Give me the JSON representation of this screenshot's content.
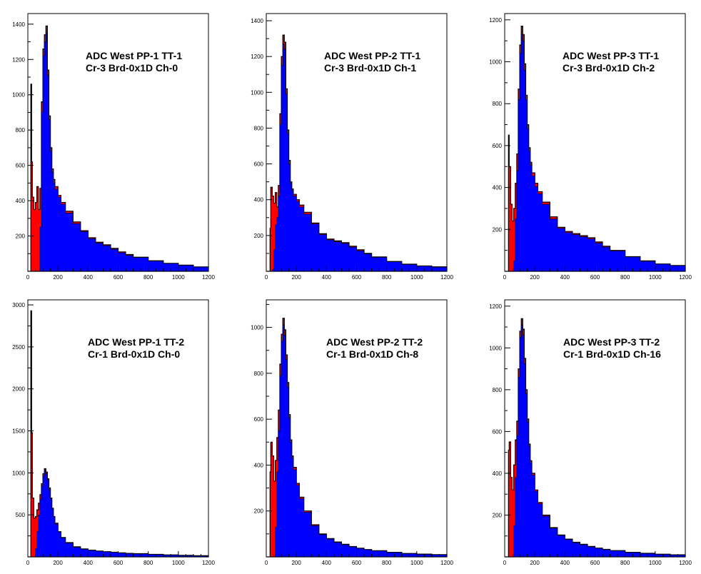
{
  "colors": {
    "background": "#ffffff",
    "total_fill": "#ff0000",
    "gated_fill": "#0000ff",
    "outline": "#000000"
  },
  "chart_data": [
    {
      "type": "area",
      "title_lines": [
        "ADC West PP-1 TT-1",
        "Cr-3 Brd-0x1D Ch-0"
      ],
      "xlim": [
        0,
        1200
      ],
      "ylim": [
        0,
        1460
      ],
      "xticks": [
        0,
        200,
        400,
        600,
        800,
        1000,
        1200
      ],
      "yticks": [
        200,
        400,
        600,
        800,
        1000,
        1200,
        1400
      ],
      "x": [
        0,
        15,
        20,
        25,
        30,
        40,
        50,
        60,
        70,
        80,
        90,
        100,
        110,
        120,
        130,
        140,
        150,
        160,
        170,
        180,
        200,
        220,
        250,
        300,
        350,
        400,
        450,
        500,
        550,
        600,
        650,
        700,
        800,
        900,
        1000,
        1100,
        1200
      ],
      "series": [
        {
          "values": [
            0,
            0,
            1060,
            620,
            420,
            350,
            390,
            480,
            350,
            470,
            960,
            1260,
            1340,
            1390,
            1140,
            880,
            700,
            580,
            520,
            480,
            430,
            390,
            340,
            280,
            230,
            190,
            165,
            150,
            130,
            110,
            95,
            80,
            60,
            45,
            35,
            25,
            20
          ]
        },
        {
          "values": [
            0,
            0,
            0,
            0,
            0,
            0,
            0,
            0,
            0,
            250,
            900,
            1220,
            1300,
            1350,
            1110,
            860,
            680,
            560,
            500,
            465,
            420,
            380,
            330,
            270,
            225,
            185,
            160,
            145,
            125,
            105,
            90,
            78,
            58,
            44,
            34,
            24,
            18
          ]
        }
      ]
    },
    {
      "type": "area",
      "title_lines": [
        "ADC West PP-2 TT-1",
        "Cr-3 Brd-0x1D Ch-1"
      ],
      "xlim": [
        0,
        1200
      ],
      "ylim": [
        0,
        1440
      ],
      "xticks": [
        0,
        200,
        400,
        600,
        800,
        1000,
        1200
      ],
      "yticks": [
        200,
        400,
        600,
        800,
        1000,
        1200,
        1400
      ],
      "x": [
        0,
        15,
        20,
        25,
        30,
        40,
        50,
        60,
        70,
        80,
        90,
        100,
        110,
        120,
        130,
        140,
        150,
        160,
        170,
        180,
        200,
        220,
        250,
        300,
        350,
        400,
        450,
        500,
        550,
        600,
        650,
        700,
        800,
        900,
        1000,
        1100,
        1200
      ],
      "series": [
        {
          "values": [
            0,
            0,
            0,
            240,
            470,
            420,
            380,
            440,
            360,
            480,
            880,
            1200,
            1320,
            1280,
            1020,
            790,
            620,
            500,
            460,
            430,
            400,
            370,
            330,
            270,
            210,
            180,
            170,
            160,
            140,
            120,
            100,
            80,
            55,
            40,
            30,
            25,
            20
          ]
        },
        {
          "values": [
            0,
            0,
            0,
            0,
            0,
            10,
            120,
            260,
            300,
            420,
            820,
            1150,
            1270,
            1240,
            990,
            770,
            600,
            490,
            450,
            420,
            390,
            360,
            320,
            265,
            205,
            175,
            165,
            155,
            135,
            115,
            97,
            78,
            53,
            38,
            29,
            23,
            18
          ]
        }
      ]
    },
    {
      "type": "area",
      "title_lines": [
        "ADC West PP-3 TT-1",
        "Cr-3 Brd-0x1D Ch-2"
      ],
      "xlim": [
        0,
        1200
      ],
      "ylim": [
        0,
        1230
      ],
      "xticks": [
        0,
        200,
        400,
        600,
        800,
        1000,
        1200
      ],
      "yticks": [
        200,
        400,
        600,
        800,
        1000,
        1200
      ],
      "x": [
        0,
        15,
        20,
        25,
        30,
        40,
        50,
        60,
        70,
        80,
        90,
        100,
        110,
        120,
        130,
        140,
        150,
        160,
        170,
        180,
        200,
        220,
        250,
        300,
        350,
        400,
        450,
        500,
        550,
        600,
        650,
        700,
        800,
        900,
        1000,
        1100,
        1200
      ],
      "series": [
        {
          "values": [
            0,
            0,
            0,
            650,
            500,
            320,
            240,
            300,
            420,
            560,
            870,
            1080,
            1170,
            1130,
            990,
            840,
            700,
            590,
            520,
            470,
            420,
            380,
            330,
            260,
            210,
            190,
            180,
            170,
            160,
            140,
            120,
            100,
            70,
            50,
            35,
            28,
            22
          ]
        },
        {
          "values": [
            0,
            0,
            0,
            0,
            0,
            0,
            0,
            50,
            250,
            480,
            820,
            1040,
            1130,
            1100,
            960,
            820,
            680,
            575,
            505,
            455,
            405,
            370,
            320,
            250,
            205,
            185,
            175,
            165,
            155,
            135,
            116,
            97,
            68,
            48,
            34,
            27,
            21
          ]
        }
      ]
    },
    {
      "type": "area",
      "title_lines": [
        "ADC West PP-1 TT-2",
        "Cr-1 Brd-0x1D Ch-0"
      ],
      "xlim": [
        0,
        1200
      ],
      "ylim": [
        0,
        3060
      ],
      "xticks": [
        0,
        200,
        400,
        600,
        800,
        1000,
        1200
      ],
      "yticks": [
        500,
        1000,
        1500,
        2000,
        2500,
        3000
      ],
      "x": [
        0,
        15,
        20,
        25,
        30,
        40,
        50,
        60,
        70,
        80,
        90,
        100,
        110,
        120,
        130,
        140,
        150,
        160,
        170,
        180,
        200,
        220,
        250,
        300,
        350,
        400,
        450,
        500,
        550,
        600,
        650,
        700,
        800,
        900,
        1000,
        1100,
        1200
      ],
      "series": [
        {
          "values": [
            0,
            0,
            2930,
            1480,
            700,
            460,
            480,
            560,
            640,
            740,
            870,
            990,
            1050,
            1010,
            930,
            820,
            700,
            580,
            480,
            400,
            300,
            230,
            170,
            120,
            95,
            80,
            70,
            62,
            55,
            48,
            42,
            38,
            30,
            24,
            18,
            14,
            10
          ]
        },
        {
          "values": [
            0,
            0,
            0,
            0,
            0,
            0,
            100,
            300,
            500,
            680,
            840,
            960,
            1030,
            990,
            910,
            800,
            690,
            570,
            470,
            390,
            295,
            225,
            165,
            115,
            92,
            78,
            68,
            60,
            53,
            46,
            40,
            36,
            28,
            22,
            16,
            12,
            8
          ]
        }
      ]
    },
    {
      "type": "area",
      "title_lines": [
        "ADC West PP-2 TT-2",
        "Cr-1 Brd-0x1D Ch-8"
      ],
      "xlim": [
        0,
        1200
      ],
      "ylim": [
        0,
        1120
      ],
      "xticks": [
        0,
        200,
        400,
        600,
        800,
        1000,
        1200
      ],
      "yticks": [
        200,
        400,
        600,
        800,
        1000
      ],
      "x": [
        0,
        15,
        20,
        25,
        30,
        40,
        50,
        60,
        70,
        80,
        90,
        100,
        110,
        120,
        130,
        140,
        150,
        160,
        170,
        180,
        200,
        220,
        250,
        300,
        350,
        400,
        450,
        500,
        550,
        600,
        650,
        700,
        800,
        900,
        1000,
        1100,
        1200
      ],
      "series": [
        {
          "values": [
            0,
            0,
            0,
            370,
            500,
            440,
            330,
            420,
            520,
            640,
            840,
            970,
            1040,
            990,
            880,
            760,
            620,
            510,
            440,
            390,
            320,
            260,
            200,
            140,
            100,
            80,
            65,
            55,
            45,
            38,
            32,
            27,
            20,
            15,
            12,
            10,
            8
          ]
        },
        {
          "values": [
            0,
            0,
            0,
            0,
            0,
            0,
            0,
            130,
            370,
            550,
            790,
            940,
            1010,
            965,
            860,
            740,
            605,
            500,
            430,
            380,
            312,
            254,
            195,
            136,
            97,
            78,
            63,
            53,
            44,
            37,
            31,
            26,
            19,
            14,
            11,
            9,
            7
          ]
        }
      ]
    },
    {
      "type": "area",
      "title_lines": [
        "ADC West PP-3 TT-2",
        "Cr-1 Brd-0x1D Ch-16"
      ],
      "xlim": [
        0,
        1200
      ],
      "ylim": [
        0,
        1230
      ],
      "xticks": [
        0,
        200,
        400,
        600,
        800,
        1000,
        1200
      ],
      "yticks": [
        200,
        400,
        600,
        800,
        1000,
        1200
      ],
      "x": [
        0,
        15,
        20,
        25,
        30,
        40,
        50,
        60,
        70,
        80,
        90,
        100,
        110,
        120,
        130,
        140,
        150,
        160,
        170,
        180,
        200,
        220,
        250,
        300,
        350,
        400,
        450,
        500,
        550,
        600,
        650,
        700,
        800,
        900,
        1000,
        1100,
        1200
      ],
      "series": [
        {
          "values": [
            0,
            0,
            0,
            510,
            550,
            380,
            320,
            440,
            560,
            650,
            900,
            1080,
            1140,
            1090,
            950,
            800,
            660,
            540,
            460,
            400,
            320,
            260,
            200,
            140,
            105,
            85,
            70,
            60,
            50,
            42,
            36,
            30,
            22,
            17,
            13,
            10,
            8
          ]
        },
        {
          "values": [
            0,
            0,
            0,
            0,
            0,
            0,
            0,
            150,
            380,
            580,
            860,
            1050,
            1110,
            1060,
            925,
            780,
            645,
            530,
            450,
            392,
            313,
            254,
            195,
            137,
            102,
            83,
            68,
            58,
            48,
            41,
            35,
            29,
            21,
            16,
            12,
            9,
            7
          ]
        }
      ]
    }
  ]
}
